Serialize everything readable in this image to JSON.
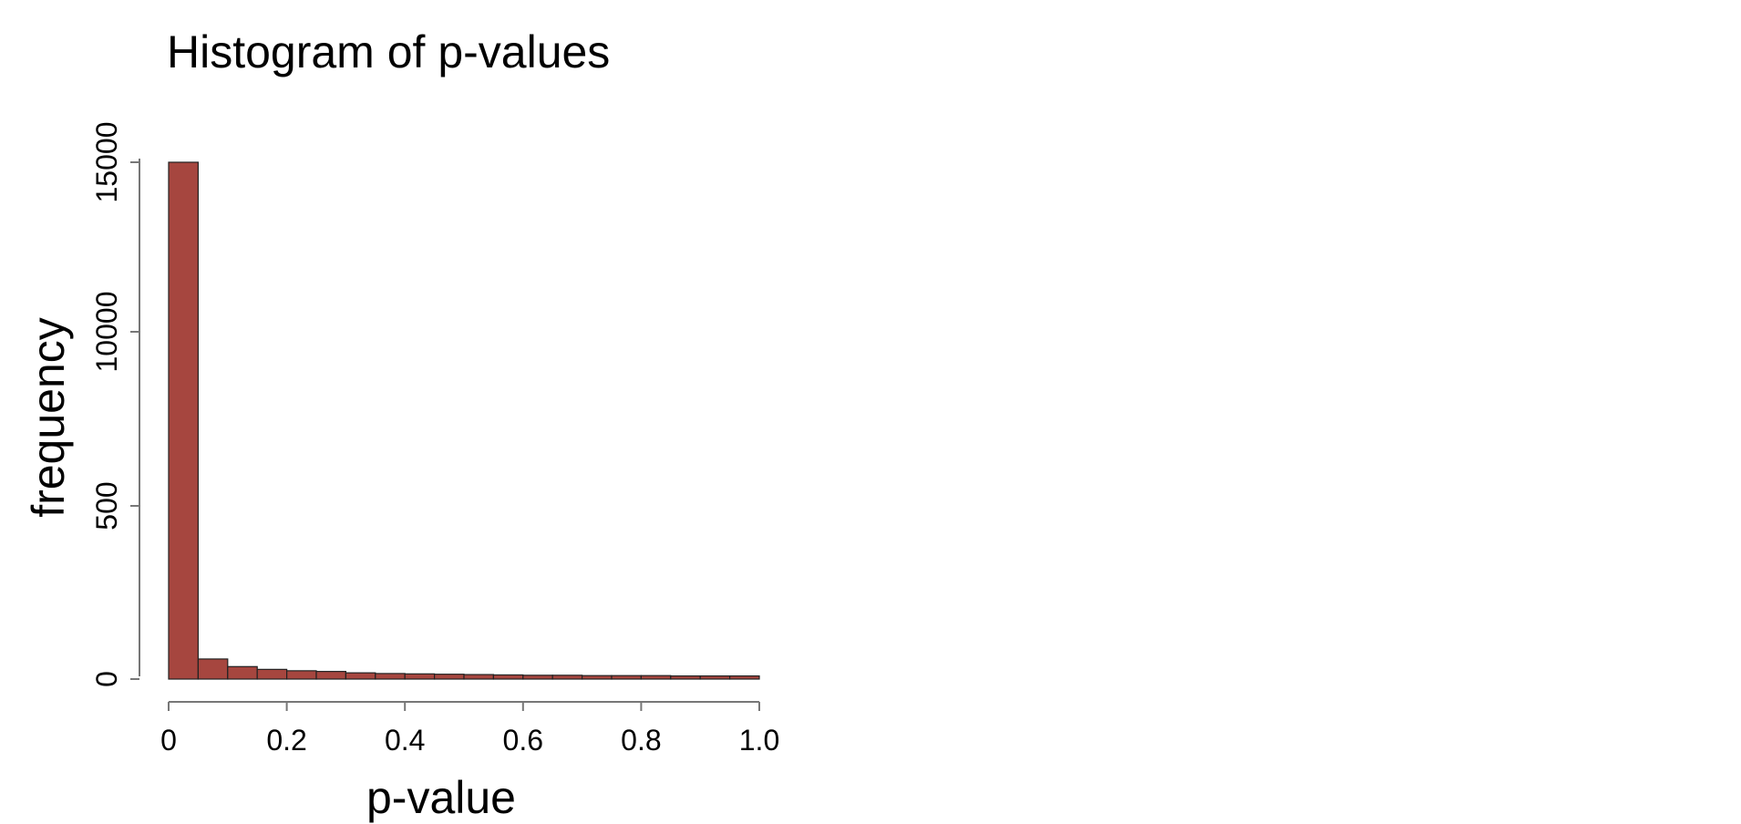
{
  "chart_data": {
    "type": "bar",
    "title": "Histogram of p-values",
    "xlabel": "p-value",
    "ylabel": "frequency",
    "bar_color": "#a6463f",
    "bin_width": 0.05,
    "x": [
      0.0,
      0.05,
      0.1,
      0.15,
      0.2,
      0.25,
      0.3,
      0.35,
      0.4,
      0.45,
      0.5,
      0.55,
      0.6,
      0.65,
      0.7,
      0.75,
      0.8,
      0.85,
      0.9,
      0.95
    ],
    "values": [
      15000,
      58,
      36,
      28,
      24,
      22,
      18,
      16,
      15,
      14,
      13,
      12,
      11,
      11,
      10,
      10,
      10,
      9,
      9,
      9
    ],
    "xlim": [
      0,
      1
    ],
    "x_ticks": [
      0,
      0.2,
      0.4,
      0.6,
      0.8,
      1.0
    ],
    "x_tick_labels": [
      "0",
      "0.2",
      "0.4",
      "0.6",
      "0.8",
      "1.0"
    ],
    "y_axis_note": "broken axis: 0-500 and 500-10000 and 10000-15000 segments",
    "y_breaks": [
      [
        0,
        500
      ],
      [
        500,
        10000
      ],
      [
        10000,
        15000
      ]
    ],
    "y_ticks": [
      0,
      500,
      10000,
      15000
    ],
    "y_tick_labels": [
      "0",
      "500",
      "10000",
      "15000"
    ],
    "grid": false,
    "legend": "none"
  }
}
